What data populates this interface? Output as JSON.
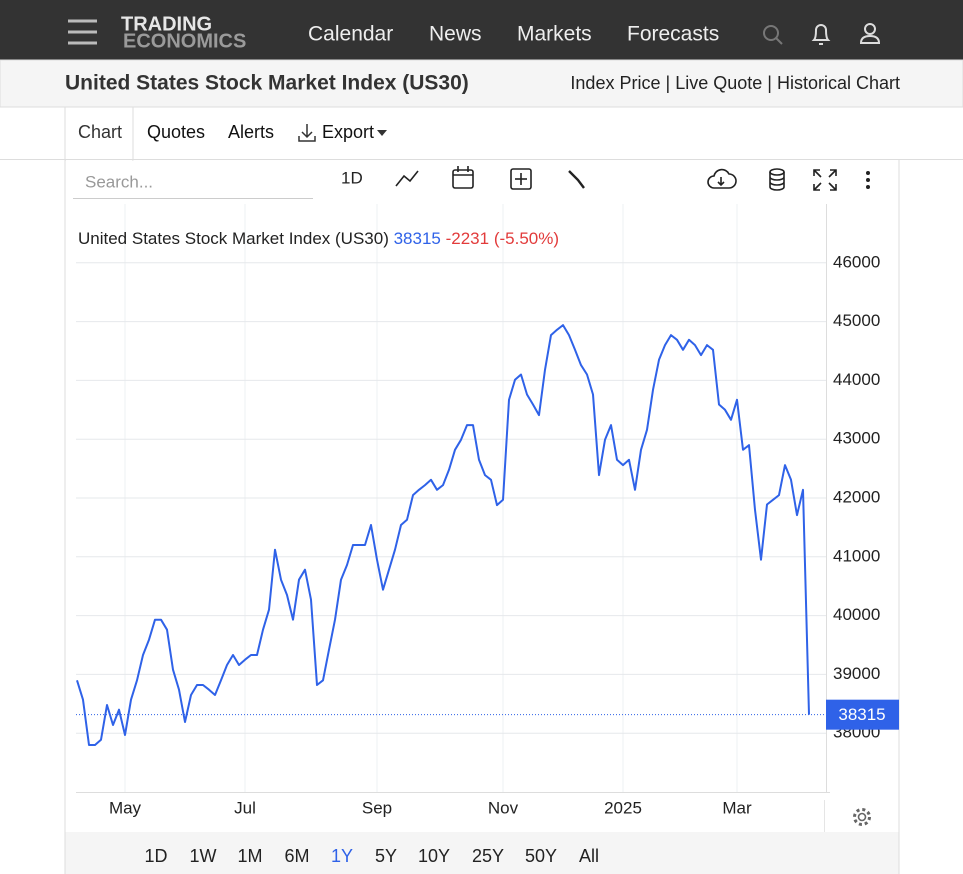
{
  "nav": {
    "logo_top": "TRADING",
    "logo_bottom": "ECONOMICS",
    "menu": [
      "Calendar",
      "News",
      "Markets",
      "Forecasts"
    ]
  },
  "header": {
    "title": "United States Stock Market Index (US30)",
    "links": [
      "Index Price",
      "Live Quote",
      "Historical Chart"
    ],
    "link_separator": "|"
  },
  "tabs": [
    "Chart",
    "Quotes",
    "Alerts",
    "Export"
  ],
  "toolbar": {
    "search_placeholder": "Search...",
    "interval": "1D"
  },
  "ranges": [
    "1D",
    "1W",
    "1M",
    "6M",
    "1Y",
    "5Y",
    "10Y",
    "25Y",
    "50Y",
    "All"
  ],
  "selected_range_index": 4,
  "chart_data": {
    "type": "line",
    "legend_change": "-2231",
    "legend_change_percent": "(-5.50%)",
    "categories": [
      null,
      null,
      null,
      null,
      null,
      null,
      null,
      null,
      "May",
      null,
      null,
      null,
      null,
      null,
      null,
      null,
      null,
      null,
      null,
      null,
      null,
      null,
      null,
      null,
      null,
      null,
      null,
      null,
      "Jul",
      null,
      null,
      null,
      null,
      null,
      null,
      null,
      null,
      null,
      null,
      null,
      null,
      null,
      null,
      null,
      null,
      null,
      null,
      null,
      null,
      null,
      "Sep",
      null,
      null,
      null,
      null,
      null,
      null,
      null,
      null,
      null,
      null,
      null,
      null,
      null,
      null,
      null,
      null,
      null,
      null,
      null,
      null,
      "Nov",
      null,
      null,
      null,
      null,
      null,
      null,
      null,
      null,
      null,
      null,
      null,
      null,
      null,
      null,
      null,
      null,
      null,
      null,
      null,
      "2025",
      null,
      null,
      null,
      null,
      null,
      null,
      null,
      null,
      null,
      null,
      null,
      null,
      null,
      null,
      null,
      null,
      null,
      null,
      "Mar",
      null,
      null,
      null,
      null,
      null,
      null,
      null,
      null,
      null,
      null,
      null,
      null
    ],
    "series": [
      {
        "name": "United States Stock Market Index (US30)",
        "color": "#2f62e8",
        "values": [
          38900,
          38570,
          37800,
          37800,
          37890,
          38480,
          38140,
          38400,
          37970,
          38570,
          38900,
          39330,
          39590,
          39930,
          39930,
          39760,
          39080,
          38740,
          38190,
          38650,
          38820,
          38820,
          38740,
          38650,
          38900,
          39160,
          39330,
          39160,
          39250,
          39330,
          39330,
          39760,
          40100,
          41120,
          40610,
          40350,
          39930,
          40610,
          40780,
          40270,
          38820,
          38900,
          39420,
          39930,
          40610,
          40860,
          41200,
          41200,
          41200,
          41540,
          40950,
          40440,
          40780,
          41120,
          41540,
          41630,
          42050,
          42140,
          42220,
          42310,
          42140,
          42220,
          42480,
          42820,
          42990,
          43240,
          43240,
          42650,
          42390,
          42310,
          41880,
          41970,
          43670,
          44010,
          44100,
          43760,
          43590,
          43410,
          44180,
          44770,
          44860,
          44940,
          44770,
          44520,
          44260,
          44100,
          43760,
          42390,
          42990,
          43240,
          42650,
          42560,
          42650,
          42140,
          42820,
          43160,
          43840,
          44350,
          44600,
          44770,
          44690,
          44520,
          44690,
          44600,
          44430,
          44600,
          44520,
          43590,
          43500,
          43330,
          43670,
          42820,
          42900,
          41800,
          40950,
          41890,
          41970,
          42050,
          42560,
          42310,
          41710,
          42140,
          38315
        ]
      }
    ],
    "ylim": [
      37000,
      47000
    ],
    "yticks": [
      38000,
      39000,
      40000,
      41000,
      42000,
      43000,
      44000,
      45000,
      46000
    ],
    "grid": true,
    "last_value_color": "#2f62e8"
  }
}
